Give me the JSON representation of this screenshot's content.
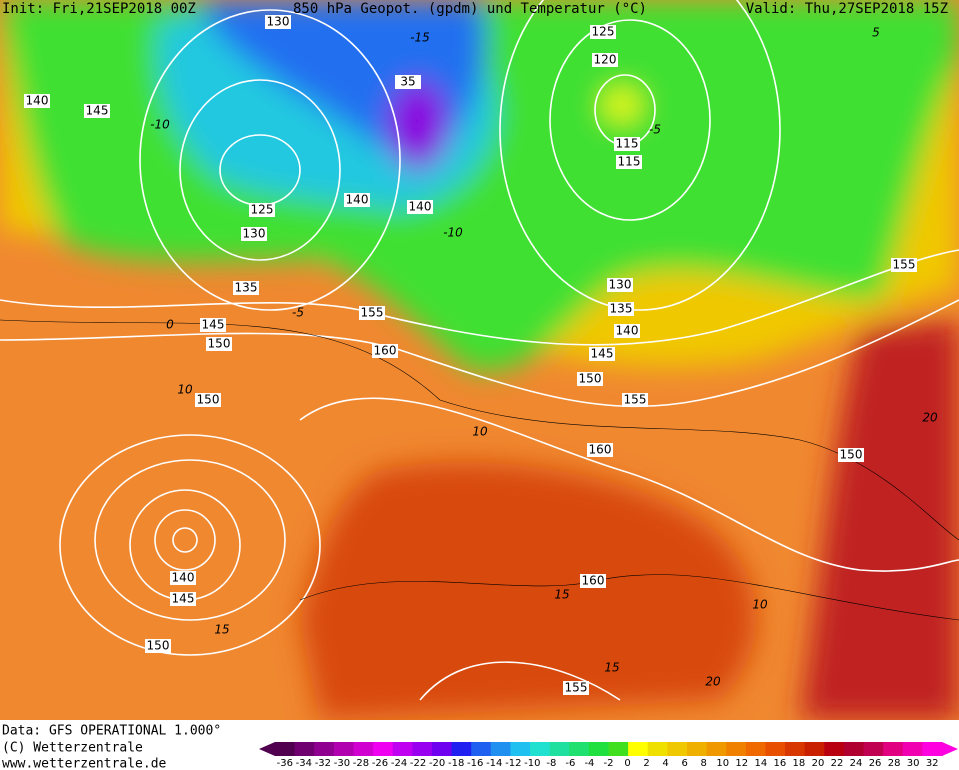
{
  "header": {
    "init": "Init: Fri,21SEP2018 00Z",
    "title": "850 hPa Geopot. (gpdm) und Temperatur (°C)",
    "valid": "Valid: Thu,27SEP2018 15Z"
  },
  "contour_labels": [
    "130",
    "125",
    "120",
    "140",
    "145",
    "35",
    "115",
    "115",
    "140",
    "140",
    "125",
    "130",
    "135",
    "155",
    "145",
    "150",
    "160",
    "130",
    "135",
    "140",
    "145",
    "150",
    "155",
    "160",
    "150",
    "150",
    "155",
    "160",
    "140",
    "145",
    "150",
    "155"
  ],
  "isotherm_labels": [
    "-15",
    "-10",
    "-5",
    "-10",
    "-5",
    "0",
    "10",
    "10",
    "10",
    "15",
    "15",
    "15",
    "20",
    "20",
    "5"
  ],
  "footer": {
    "data": "Data: GFS OPERATIONAL 1.000°",
    "copyright": "(C) Wetterzentrale",
    "url": "www.wetterzentrale.de"
  },
  "colorbar": {
    "ticks": [
      -36,
      -34,
      -32,
      -30,
      -28,
      -26,
      -24,
      -22,
      -20,
      -18,
      -16,
      -14,
      -12,
      -10,
      -8,
      -6,
      -4,
      -2,
      0,
      2,
      4,
      6,
      8,
      10,
      12,
      14,
      16,
      18,
      20,
      22,
      24,
      26,
      28,
      30,
      32
    ],
    "colors": [
      "#50004e",
      "#700070",
      "#900090",
      "#b000b0",
      "#d000d0",
      "#f000f0",
      "#c000f0",
      "#9a00f0",
      "#7000f0",
      "#2020f0",
      "#2060f0",
      "#2090f0",
      "#20c0f0",
      "#20e0d0",
      "#20e0a0",
      "#20e070",
      "#20e040",
      "#40e020",
      "#ffff00",
      "#f0e000",
      "#f0c800",
      "#f0b000",
      "#f09800",
      "#f08000",
      "#f06800",
      "#e85000",
      "#d83800",
      "#c82000",
      "#b80010",
      "#b00030",
      "#c00050",
      "#e00080",
      "#f000b0",
      "#ff00e0"
    ]
  }
}
